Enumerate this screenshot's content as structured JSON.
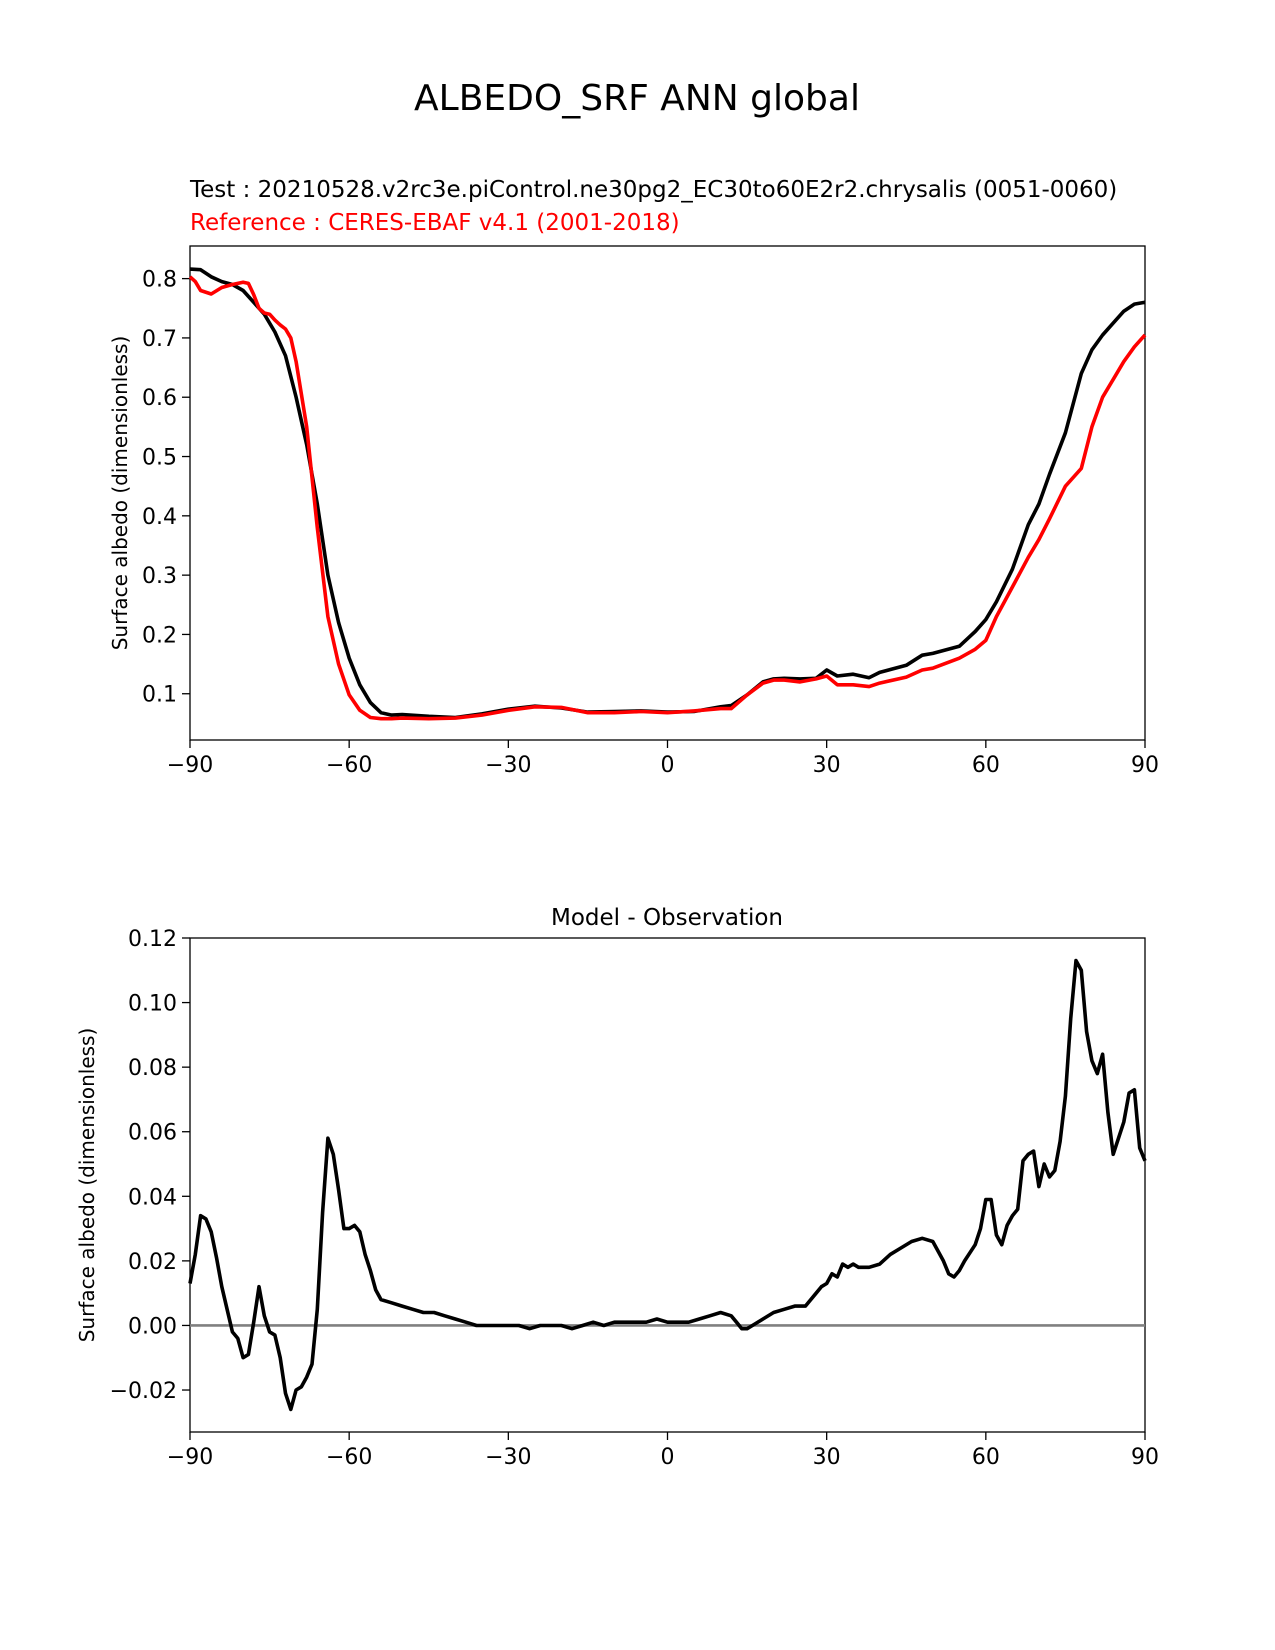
{
  "suptitle": "ALBEDO_SRF ANN global",
  "colors": {
    "test": "#000000",
    "reference": "#ff0000",
    "zero_line": "#808080"
  },
  "chart_data": [
    {
      "type": "line",
      "title_test": "Test : 20210528.v2rc3e.piControl.ne30pg2_EC30to60E2r2.chrysalis (0051-0060)",
      "title_reference": "Reference : CERES-EBAF v4.1 (2001-2018)",
      "xlabel": "",
      "ylabel": "Surface albedo (dimensionless)",
      "xlim": [
        -90,
        90
      ],
      "ylim": [
        0.022,
        0.855
      ],
      "xticks": [
        -90,
        -60,
        -30,
        0,
        30,
        60,
        90
      ],
      "xtick_labels": [
        "−90",
        "−60",
        "−30",
        "0",
        "30",
        "60",
        "90"
      ],
      "yticks": [
        0.1,
        0.2,
        0.3,
        0.4,
        0.5,
        0.6,
        0.7,
        0.8
      ],
      "ytick_labels": [
        "0.1",
        "0.2",
        "0.3",
        "0.4",
        "0.5",
        "0.6",
        "0.7",
        "0.8"
      ],
      "grid": false,
      "series": [
        {
          "key": "test",
          "x": [
            -90,
            -88,
            -86,
            -84,
            -82,
            -80,
            -78,
            -76,
            -74,
            -72,
            -70,
            -68,
            -66,
            -64,
            -62,
            -60,
            -58,
            -56,
            -54,
            -52,
            -50,
            -45,
            -40,
            -35,
            -30,
            -25,
            -20,
            -15,
            -10,
            -5,
            0,
            5,
            10,
            12,
            15,
            18,
            20,
            22,
            25,
            28,
            30,
            32,
            35,
            38,
            40,
            45,
            48,
            50,
            55,
            58,
            60,
            62,
            65,
            68,
            70,
            72,
            75,
            78,
            80,
            82,
            84,
            86,
            88,
            90
          ],
          "values": [
            0.816,
            0.815,
            0.803,
            0.795,
            0.79,
            0.78,
            0.76,
            0.74,
            0.71,
            0.67,
            0.6,
            0.52,
            0.42,
            0.3,
            0.22,
            0.16,
            0.115,
            0.085,
            0.068,
            0.064,
            0.065,
            0.062,
            0.06,
            0.066,
            0.074,
            0.079,
            0.076,
            0.069,
            0.07,
            0.071,
            0.069,
            0.07,
            0.078,
            0.08,
            0.098,
            0.12,
            0.125,
            0.126,
            0.125,
            0.126,
            0.14,
            0.13,
            0.133,
            0.127,
            0.136,
            0.148,
            0.165,
            0.168,
            0.18,
            0.205,
            0.225,
            0.255,
            0.31,
            0.385,
            0.42,
            0.47,
            0.54,
            0.64,
            0.68,
            0.705,
            0.725,
            0.745,
            0.757,
            0.76
          ]
        },
        {
          "key": "reference",
          "x": [
            -90,
            -89,
            -88,
            -86,
            -84,
            -82,
            -80,
            -79,
            -78,
            -77,
            -76,
            -75,
            -74,
            -73,
            -72,
            -71,
            -70,
            -68,
            -66,
            -64,
            -62,
            -60,
            -58,
            -56,
            -54,
            -52,
            -50,
            -45,
            -40,
            -35,
            -30,
            -25,
            -20,
            -15,
            -10,
            -5,
            0,
            5,
            10,
            12,
            15,
            18,
            20,
            22,
            25,
            28,
            30,
            32,
            35,
            38,
            40,
            45,
            48,
            50,
            55,
            58,
            60,
            62,
            65,
            68,
            70,
            72,
            75,
            78,
            80,
            82,
            84,
            86,
            88,
            90
          ],
          "values": [
            0.803,
            0.795,
            0.78,
            0.774,
            0.785,
            0.79,
            0.794,
            0.792,
            0.773,
            0.75,
            0.742,
            0.74,
            0.73,
            0.722,
            0.715,
            0.7,
            0.66,
            0.55,
            0.38,
            0.23,
            0.15,
            0.098,
            0.072,
            0.06,
            0.058,
            0.058,
            0.059,
            0.058,
            0.059,
            0.064,
            0.072,
            0.078,
            0.077,
            0.068,
            0.068,
            0.07,
            0.068,
            0.071,
            0.075,
            0.075,
            0.098,
            0.118,
            0.123,
            0.123,
            0.12,
            0.125,
            0.13,
            0.115,
            0.115,
            0.112,
            0.118,
            0.128,
            0.14,
            0.143,
            0.16,
            0.175,
            0.19,
            0.23,
            0.28,
            0.33,
            0.36,
            0.395,
            0.45,
            0.48,
            0.55,
            0.6,
            0.63,
            0.66,
            0.685,
            0.705
          ]
        }
      ]
    },
    {
      "type": "line",
      "title": "Model - Observation",
      "xlabel": "",
      "ylabel": "Surface albedo (dimensionless)",
      "xlim": [
        -90,
        90
      ],
      "ylim": [
        -0.033,
        0.12
      ],
      "xticks": [
        -90,
        -60,
        -30,
        0,
        30,
        60,
        90
      ],
      "xtick_labels": [
        "−90",
        "−60",
        "−30",
        "0",
        "30",
        "60",
        "90"
      ],
      "yticks": [
        -0.02,
        0.0,
        0.02,
        0.04,
        0.06,
        0.08,
        0.1,
        0.12
      ],
      "ytick_labels": [
        "−0.02",
        "0.00",
        "0.02",
        "0.04",
        "0.06",
        "0.08",
        "0.10",
        "0.12"
      ],
      "grid": false,
      "hline": 0.0,
      "series": [
        {
          "key": "test",
          "x": [
            -90,
            -89,
            -88,
            -87,
            -86,
            -85,
            -84,
            -83,
            -82,
            -81,
            -80,
            -79,
            -78,
            -77,
            -76,
            -75,
            -74,
            -73,
            -72,
            -71,
            -70,
            -69,
            -68,
            -67,
            -66,
            -65,
            -64,
            -63,
            -62,
            -61,
            -60,
            -59,
            -58,
            -57,
            -56,
            -55,
            -54,
            -52,
            -50,
            -48,
            -46,
            -44,
            -42,
            -40,
            -38,
            -36,
            -34,
            -32,
            -30,
            -28,
            -26,
            -24,
            -22,
            -20,
            -18,
            -16,
            -14,
            -12,
            -10,
            -8,
            -6,
            -4,
            -2,
            0,
            2,
            4,
            6,
            8,
            10,
            12,
            13,
            14,
            15,
            16,
            18,
            20,
            22,
            24,
            26,
            28,
            29,
            30,
            31,
            32,
            33,
            34,
            35,
            36,
            38,
            40,
            42,
            44,
            46,
            48,
            50,
            52,
            53,
            54,
            55,
            56,
            58,
            59,
            60,
            61,
            62,
            63,
            64,
            65,
            66,
            67,
            68,
            69,
            70,
            71,
            72,
            73,
            74,
            75,
            76,
            77,
            78,
            79,
            80,
            81,
            82,
            83,
            84,
            85,
            86,
            87,
            88,
            89,
            90
          ],
          "values": [
            0.013,
            0.022,
            0.034,
            0.033,
            0.029,
            0.021,
            0.012,
            0.005,
            -0.002,
            -0.004,
            -0.01,
            -0.009,
            0.001,
            0.012,
            0.003,
            -0.002,
            -0.003,
            -0.01,
            -0.021,
            -0.026,
            -0.02,
            -0.019,
            -0.016,
            -0.012,
            0.005,
            0.035,
            0.058,
            0.053,
            0.042,
            0.03,
            0.03,
            0.031,
            0.029,
            0.022,
            0.017,
            0.011,
            0.008,
            0.007,
            0.006,
            0.005,
            0.004,
            0.004,
            0.003,
            0.002,
            0.001,
            0.0,
            0.0,
            0.0,
            0.0,
            0.0,
            -0.001,
            0.0,
            0.0,
            0.0,
            -0.001,
            0.0,
            0.001,
            0.0,
            0.001,
            0.001,
            0.001,
            0.001,
            0.002,
            0.001,
            0.001,
            0.001,
            0.002,
            0.003,
            0.004,
            0.003,
            0.001,
            -0.001,
            -0.001,
            0.0,
            0.002,
            0.004,
            0.005,
            0.006,
            0.006,
            0.01,
            0.012,
            0.013,
            0.016,
            0.015,
            0.019,
            0.018,
            0.019,
            0.018,
            0.018,
            0.019,
            0.022,
            0.024,
            0.026,
            0.027,
            0.026,
            0.02,
            0.016,
            0.015,
            0.017,
            0.02,
            0.025,
            0.03,
            0.039,
            0.039,
            0.028,
            0.025,
            0.031,
            0.034,
            0.036,
            0.051,
            0.053,
            0.054,
            0.043,
            0.05,
            0.046,
            0.048,
            0.057,
            0.071,
            0.095,
            0.113,
            0.11,
            0.091,
            0.082,
            0.078,
            0.084,
            0.066,
            0.053,
            0.058,
            0.063,
            0.072,
            0.073,
            0.055,
            0.051
          ]
        }
      ]
    }
  ]
}
